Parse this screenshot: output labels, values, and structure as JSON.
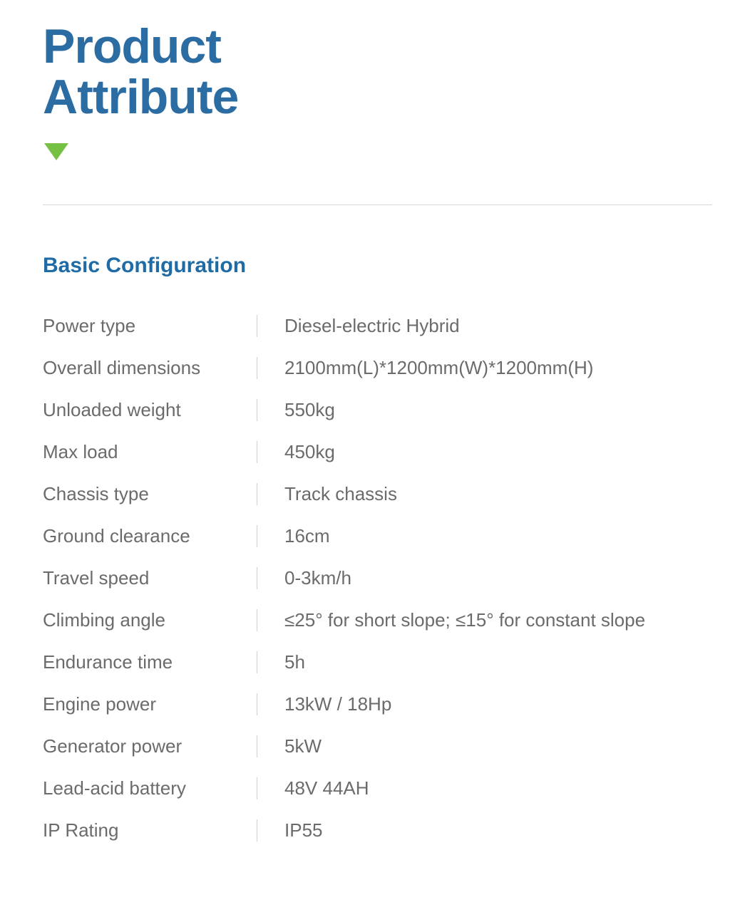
{
  "colors": {
    "title_color": "#2b6ca3",
    "triangle_color": "#76c043",
    "section_title_color": "#1e6ba5",
    "text_color": "#6b6b6b",
    "divider_color": "#d8d8d8",
    "value_border_color": "#cfcfcf",
    "background": "#ffffff"
  },
  "typography": {
    "main_title_fontsize": 68,
    "section_title_fontsize": 30,
    "body_fontsize": 26
  },
  "layout": {
    "label_column_width": 300
  },
  "header": {
    "title_line1": "Product",
    "title_line2": "Attribute"
  },
  "section": {
    "title": "Basic Configuration"
  },
  "specs": [
    {
      "label": "Power type",
      "value": "Diesel-electric Hybrid"
    },
    {
      "label": "Overall dimensions",
      "value": "2100mm(L)*1200mm(W)*1200mm(H)"
    },
    {
      "label": "Unloaded weight",
      "value": "550kg"
    },
    {
      "label": "Max load",
      "value": "450kg"
    },
    {
      "label": "Chassis type",
      "value": "Track chassis"
    },
    {
      "label": "Ground clearance",
      "value": "16cm"
    },
    {
      "label": "Travel speed",
      "value": "0-3km/h"
    },
    {
      "label": "Climbing angle",
      "value": "≤25° for short slope; ≤15° for constant slope"
    },
    {
      "label": "Endurance time",
      "value": "5h"
    },
    {
      "label": "Engine power",
      "value": "13kW / 18Hp"
    },
    {
      "label": "Generator power",
      "value": "5kW"
    },
    {
      "label": "Lead-acid battery",
      "value": "48V 44AH"
    },
    {
      "label": "IP Rating",
      "value": "IP55"
    }
  ]
}
